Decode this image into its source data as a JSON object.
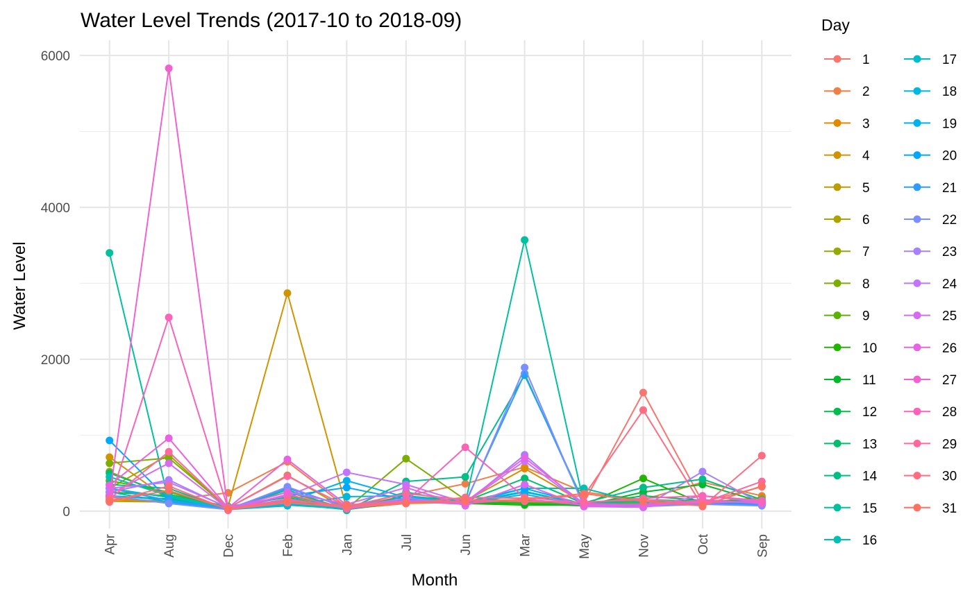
{
  "chart_data": {
    "type": "line",
    "title": "Water Level Trends (2017-10 to 2018-09)",
    "xlabel": "Month",
    "ylabel": "Water Level",
    "ylim": [
      -230,
      6200
    ],
    "yticks": [
      0,
      2000,
      4000,
      6000
    ],
    "categories": [
      "Apr",
      "Aug",
      "Dec",
      "Feb",
      "Jan",
      "Jul",
      "Jun",
      "Mar",
      "May",
      "Nov",
      "Oct",
      "Sep"
    ],
    "legend": {
      "title": "Day",
      "position": "right",
      "columns": 2
    },
    "grid": true,
    "series": [
      {
        "name": "1",
        "color": "#F8766D",
        "values": [
          180,
          120,
          30,
          150,
          60,
          120,
          150,
          140,
          110,
          1560,
          120,
          320
        ]
      },
      {
        "name": "2",
        "color": "#EF7F47",
        "values": [
          200,
          150,
          240,
          650,
          50,
          200,
          360,
          580,
          250,
          150,
          380,
          200
        ]
      },
      {
        "name": "3",
        "color": "#E18A00",
        "values": [
          150,
          130,
          20,
          120,
          20,
          150,
          130,
          560,
          110,
          120,
          110,
          180
        ]
      },
      {
        "name": "4",
        "color": "#D09400",
        "values": [
          710,
          150,
          60,
          2870,
          30,
          100,
          120,
          100,
          90,
          100,
          140,
          120
        ]
      },
      {
        "name": "5",
        "color": "#BE9C00",
        "values": [
          130,
          120,
          40,
          470,
          20,
          130,
          110,
          120,
          100,
          130,
          110,
          170
        ]
      },
      {
        "name": "6",
        "color": "#ACA300",
        "values": [
          520,
          200,
          50,
          130,
          30,
          120,
          130,
          140,
          90,
          120,
          120,
          140
        ]
      },
      {
        "name": "7",
        "color": "#96A900",
        "values": [
          300,
          740,
          30,
          150,
          40,
          150,
          120,
          130,
          100,
          120,
          120,
          120
        ]
      },
      {
        "name": "8",
        "color": "#7CAE00",
        "values": [
          630,
          700,
          40,
          250,
          30,
          690,
          150,
          120,
          100,
          100,
          120,
          130
        ]
      },
      {
        "name": "9",
        "color": "#5BB300",
        "values": [
          400,
          250,
          30,
          200,
          40,
          150,
          110,
          110,
          90,
          90,
          110,
          110
        ]
      },
      {
        "name": "10",
        "color": "#20B600",
        "values": [
          250,
          200,
          20,
          150,
          30,
          130,
          100,
          80,
          80,
          430,
          100,
          120
        ]
      },
      {
        "name": "11",
        "color": "#00B92A",
        "values": [
          200,
          160,
          30,
          100,
          20,
          120,
          110,
          100,
          70,
          250,
          350,
          120
        ]
      },
      {
        "name": "12",
        "color": "#00BC4F",
        "values": [
          300,
          180,
          40,
          130,
          30,
          140,
          120,
          140,
          90,
          200,
          140,
          130
        ]
      },
      {
        "name": "13",
        "color": "#00BE6C",
        "values": [
          500,
          220,
          60,
          180,
          20,
          200,
          130,
          430,
          100,
          150,
          130,
          110
        ]
      },
      {
        "name": "14",
        "color": "#00BF86",
        "values": [
          350,
          300,
          20,
          280,
          10,
          390,
          450,
          1790,
          110,
          310,
          420,
          150
        ]
      },
      {
        "name": "15",
        "color": "#00C09F",
        "values": [
          3400,
          130,
          30,
          100,
          20,
          150,
          110,
          3570,
          100,
          120,
          110,
          140
        ]
      },
      {
        "name": "16",
        "color": "#00C0B6",
        "values": [
          450,
          200,
          40,
          80,
          30,
          120,
          120,
          300,
          300,
          100,
          120,
          110
        ]
      },
      {
        "name": "17",
        "color": "#00BDCB",
        "values": [
          300,
          180,
          30,
          100,
          30,
          250,
          110,
          260,
          90,
          80,
          120,
          100
        ]
      },
      {
        "name": "18",
        "color": "#00B8DE",
        "values": [
          200,
          150,
          20,
          70,
          190,
          200,
          100,
          220,
          80,
          90,
          110,
          90
        ]
      },
      {
        "name": "19",
        "color": "#00B1EE",
        "values": [
          250,
          120,
          20,
          120,
          400,
          180,
          100,
          250,
          90,
          80,
          100,
          80
        ]
      },
      {
        "name": "20",
        "color": "#00A8FB",
        "values": [
          930,
          150,
          20,
          200,
          310,
          150,
          100,
          300,
          90,
          80,
          120,
          90
        ]
      },
      {
        "name": "21",
        "color": "#2C9DFF",
        "values": [
          300,
          140,
          30,
          300,
          60,
          130,
          110,
          1810,
          80,
          70,
          100,
          80
        ]
      },
      {
        "name": "22",
        "color": "#7B8FFF",
        "values": [
          200,
          100,
          20,
          320,
          40,
          130,
          90,
          1890,
          60,
          60,
          90,
          70
        ]
      },
      {
        "name": "23",
        "color": "#A680FF",
        "values": [
          250,
          410,
          40,
          150,
          50,
          170,
          100,
          740,
          70,
          50,
          520,
          100
        ]
      },
      {
        "name": "24",
        "color": "#C374FF",
        "values": [
          300,
          380,
          50,
          200,
          510,
          350,
          110,
          660,
          80,
          60,
          200,
          120
        ]
      },
      {
        "name": "25",
        "color": "#D86AF2",
        "values": [
          220,
          630,
          30,
          250,
          90,
          310,
          70,
          350,
          60,
          50,
          150,
          100
        ]
      },
      {
        "name": "26",
        "color": "#E763E4",
        "values": [
          340,
          960,
          40,
          680,
          80,
          140,
          120,
          700,
          100,
          80,
          110,
          130
        ]
      },
      {
        "name": "27",
        "color": "#F162D0",
        "values": [
          180,
          5830,
          10,
          220,
          30,
          120,
          100,
          160,
          80,
          90,
          130,
          110
        ]
      },
      {
        "name": "28",
        "color": "#F964B8",
        "values": [
          130,
          2550,
          30,
          160,
          40,
          130,
          840,
          180,
          110,
          170,
          200,
          140
        ]
      },
      {
        "name": "29",
        "color": "#FD689E",
        "values": [
          160,
          780,
          40,
          460,
          60,
          230,
          150,
          130,
          120,
          150,
          110,
          390
        ]
      },
      {
        "name": "30",
        "color": "#FE6D81",
        "values": [
          120,
          330,
          20,
          110,
          50,
          100,
          180,
          170,
          200,
          1330,
          60,
          730
        ]
      },
      {
        "name": "31",
        "color": "#FD7163",
        "values": [
          140,
          270,
          30,
          130,
          80,
          110,
          130,
          150,
          230,
          130,
          70,
          330
        ]
      }
    ]
  }
}
